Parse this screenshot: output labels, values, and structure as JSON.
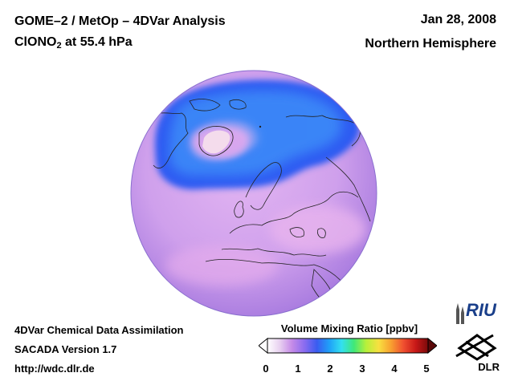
{
  "header": {
    "title_line1": "GOME–2 / MetOp – 4DVar Analysis",
    "title_line2_main": "ClONO",
    "title_line2_sub": "2",
    "title_line2_rest": " at 55.4 hPa",
    "date": "Jan 28, 2008",
    "region": "Northern Hemisphere"
  },
  "footer": {
    "line1": "4DVar Chemical Data Assimilation",
    "line2": "SACADA Version 1.7",
    "line3": "http://wdc.dlr.de"
  },
  "colorbar": {
    "title": "Volume Mixing Ratio [ppbv]",
    "ticks": [
      "0",
      "1",
      "2",
      "3",
      "4",
      "5"
    ],
    "colors": [
      "#ffffff",
      "#e8d0f0",
      "#c58ae8",
      "#8a6cf0",
      "#3a5cf0",
      "#1fa0f8",
      "#33e0f0",
      "#40e878",
      "#b8f03a",
      "#f8e040",
      "#f8a030",
      "#f05030",
      "#c81818",
      "#7a0a0a"
    ]
  },
  "logos": {
    "riu": "RIU",
    "dlr": "DLR"
  },
  "colors": {
    "ocean": "#c89ae6",
    "land_tint": "#d6a8ee",
    "low_band": "#2e5cf2",
    "band_core": "#3c8cf8",
    "outline": "#222222"
  }
}
